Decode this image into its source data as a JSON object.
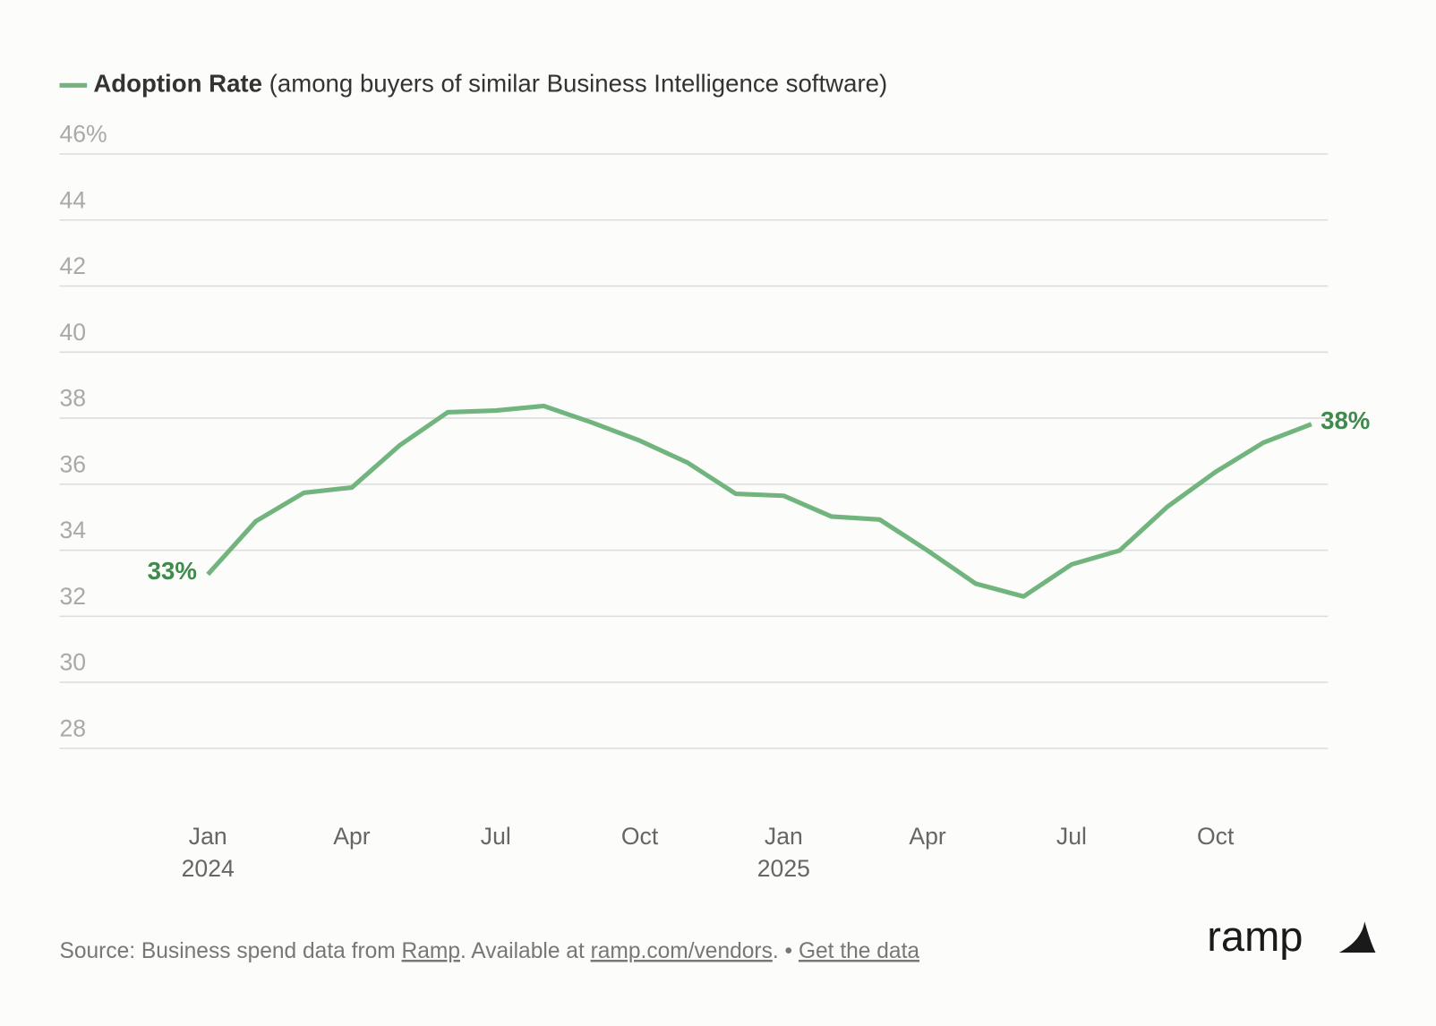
{
  "chart_data": {
    "type": "line",
    "legend_note": "(among buyers of similar Business Intelligence software)",
    "categories": [
      "Jan 2024",
      null,
      null,
      "Apr",
      null,
      null,
      "Jul",
      null,
      null,
      "Oct",
      null,
      null,
      "Jan 2025",
      null,
      null,
      "Apr",
      null,
      null,
      "Jul",
      null,
      null,
      "Oct",
      null,
      null
    ],
    "series": [
      {
        "name": "Adoption Rate",
        "color": "#72b47e",
        "values": [
          33.27,
          34.88,
          35.74,
          35.9,
          37.18,
          38.18,
          38.23,
          38.37,
          37.87,
          37.32,
          36.65,
          35.71,
          35.65,
          35.02,
          34.93,
          33.99,
          32.99,
          32.6,
          33.57,
          33.99,
          35.32,
          36.37,
          37.26,
          37.82
        ],
        "value_labels": [
          "33%",
          null,
          null,
          null,
          null,
          null,
          null,
          null,
          null,
          null,
          null,
          null,
          null,
          null,
          null,
          null,
          null,
          null,
          null,
          null,
          null,
          null,
          null,
          "38%"
        ]
      }
    ],
    "ylim": [
      28,
      46
    ],
    "yticks": [
      28,
      30,
      32,
      34,
      36,
      38,
      40,
      42,
      44,
      {
        "value": 46,
        "label": "46%"
      }
    ],
    "grid": true
  },
  "footer": {
    "parts": [
      "Source: Business spend data from ",
      "Ramp",
      ". Available at ",
      "ramp.com/vendors",
      ". • ",
      "Get the data"
    ],
    "logo": "ramp"
  }
}
